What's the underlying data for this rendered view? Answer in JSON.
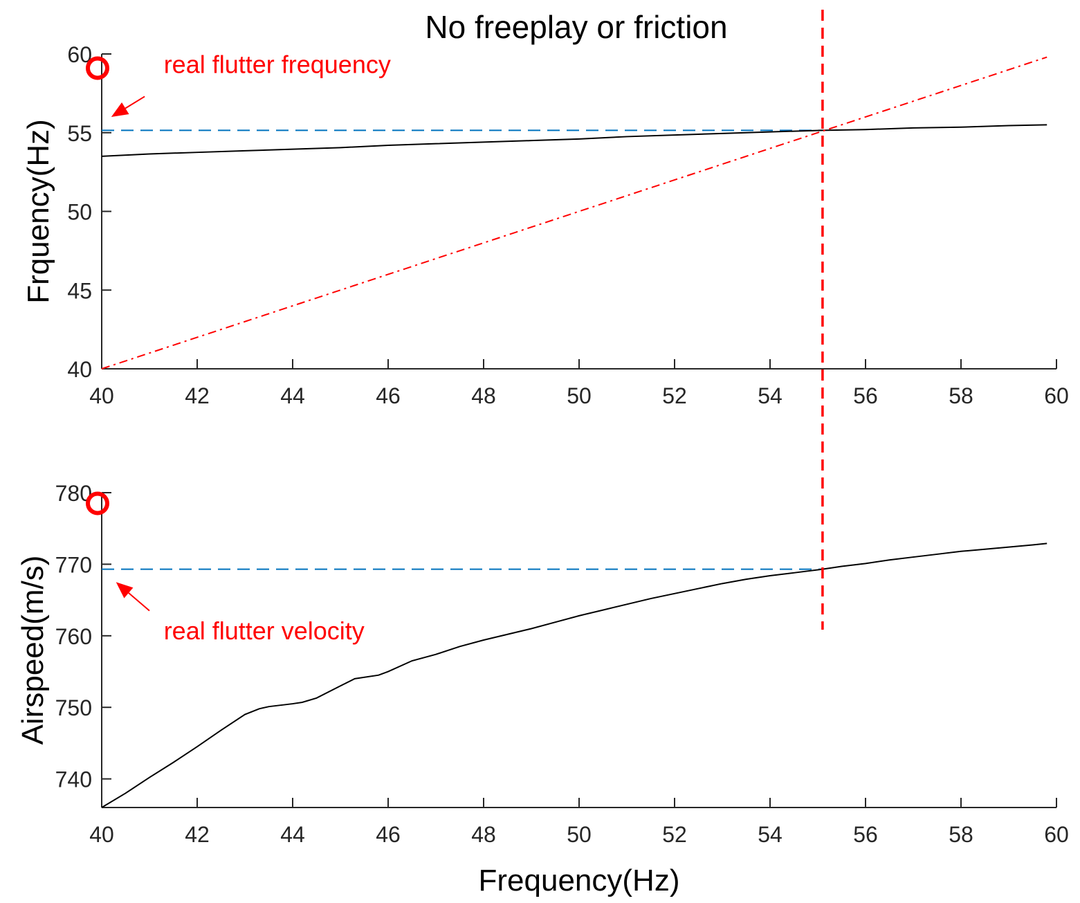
{
  "title": "No freeplay or friction",
  "colors": {
    "curve": "#000000",
    "reference": "#ff0000",
    "flutter_line": "#0072bd",
    "marker": "#ff0000",
    "axis": "#262626"
  },
  "flutter_frequency": 55.1,
  "chart_data": [
    {
      "type": "line",
      "xlabel": "",
      "ylabel": "Frquency(Hz)",
      "xlim": [
        40,
        60
      ],
      "ylim": [
        40,
        60
      ],
      "xticks": [
        40,
        42,
        44,
        46,
        48,
        50,
        52,
        54,
        56,
        58,
        60
      ],
      "yticks": [
        40,
        45,
        50,
        55,
        60
      ],
      "grid": false,
      "series": [
        {
          "style": "solid",
          "x": [
            40,
            41,
            42,
            43,
            44,
            45,
            46,
            47,
            48,
            49,
            50,
            51,
            52,
            53,
            54,
            55.1,
            56,
            57,
            58,
            59,
            59.8
          ],
          "y": [
            53.5,
            53.65,
            53.75,
            53.85,
            53.95,
            54.05,
            54.2,
            54.3,
            54.4,
            54.5,
            54.6,
            54.75,
            54.85,
            54.95,
            55.05,
            55.15,
            55.2,
            55.3,
            55.35,
            55.45,
            55.5
          ]
        },
        {
          "style": "dash-dot",
          "x": [
            40,
            59.8
          ],
          "y": [
            40,
            59.8
          ]
        }
      ],
      "hline": {
        "y": 55.15,
        "x_end": 55.1
      },
      "marker": {
        "x": 40,
        "y": 59.1
      },
      "annotation": {
        "text": "real flutter frequency",
        "x": 41.3,
        "y": 58.8,
        "arrow_from": [
          40.9,
          57.3
        ],
        "arrow_to": [
          40.2,
          56.0
        ]
      }
    },
    {
      "type": "line",
      "xlabel": "Frequency(Hz)",
      "ylabel": "Airspeed(m/s)",
      "xlim": [
        40,
        60
      ],
      "ylim": [
        736,
        780
      ],
      "xticks": [
        40,
        42,
        44,
        46,
        48,
        50,
        52,
        54,
        56,
        58,
        60
      ],
      "yticks": [
        740,
        750,
        760,
        770,
        780
      ],
      "grid": false,
      "series": [
        {
          "style": "solid",
          "x": [
            40,
            40.5,
            41,
            41.5,
            42,
            42.5,
            43,
            43.3,
            43.5,
            44,
            44.2,
            44.5,
            45,
            45.3,
            45.8,
            46,
            46.5,
            47,
            47.5,
            48,
            48.5,
            49,
            49.5,
            50,
            50.5,
            51,
            51.5,
            52,
            52.5,
            53,
            53.5,
            54,
            54.5,
            55.1,
            55.5,
            56,
            56.5,
            57,
            57.5,
            58,
            58.5,
            59,
            59.5,
            59.8
          ],
          "y": [
            736,
            738,
            740.2,
            742.3,
            744.5,
            746.8,
            749,
            749.8,
            750.1,
            750.5,
            750.7,
            751.3,
            753,
            754,
            754.5,
            755,
            756.5,
            757.4,
            758.5,
            759.4,
            760.2,
            761,
            761.9,
            762.8,
            763.6,
            764.4,
            765.2,
            765.9,
            766.6,
            767.3,
            767.9,
            768.4,
            768.8,
            769.3,
            769.7,
            770.1,
            770.6,
            771.0,
            771.4,
            771.8,
            772.1,
            772.4,
            772.7,
            772.9
          ]
        }
      ],
      "hline": {
        "y": 769.3,
        "x_end": 55.1
      },
      "marker": {
        "x": 40,
        "y": 778.5
      },
      "annotation": {
        "text": "real flutter velocity",
        "x": 41.3,
        "y": 759.5,
        "arrow_from": [
          41.0,
          763.5
        ],
        "arrow_to": [
          40.3,
          767.5
        ]
      }
    }
  ]
}
